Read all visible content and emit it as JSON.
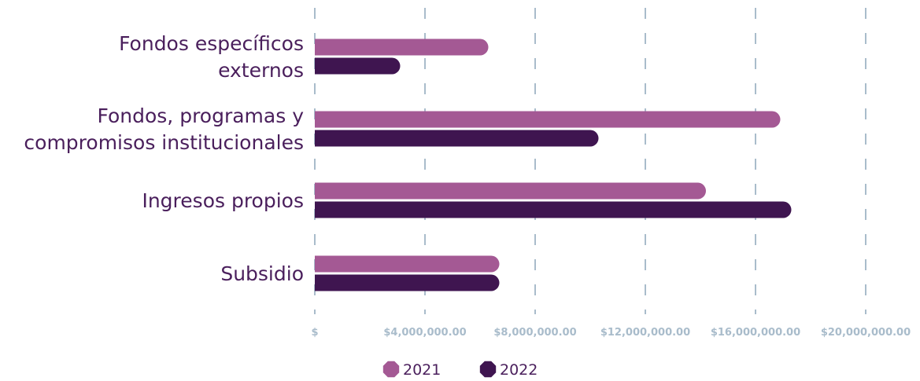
{
  "chart_data": {
    "type": "bar",
    "orientation": "horizontal",
    "title": "",
    "xlabel": "",
    "ylabel": "",
    "categories": [
      [
        "Fondos específicos",
        "externos"
      ],
      [
        "Fondos, programas y",
        "compromisos institucionales"
      ],
      [
        "Ingresos propios"
      ],
      [
        "Subsidio"
      ]
    ],
    "series": [
      {
        "name": "2021",
        "color": "#a45994",
        "values": [
          6300000,
          16900000,
          14200000,
          6700000
        ]
      },
      {
        "name": "2022",
        "color": "#3f1550",
        "values": [
          3100000,
          10300000,
          17300000,
          6700000
        ]
      }
    ],
    "xlim": [
      0,
      20000000
    ],
    "ticks": [
      {
        "value": 0,
        "label": "$"
      },
      {
        "value": 4000000,
        "label": "$4,000,000.00"
      },
      {
        "value": 8000000,
        "label": "$8,000,000.00"
      },
      {
        "value": 12000000,
        "label": "$12,000,000.00"
      },
      {
        "value": 16000000,
        "label": "$16,000,000.00"
      },
      {
        "value": 20000000,
        "label": "$20,000,000.00"
      }
    ],
    "grid": true,
    "grid_style": "dashed-vertical",
    "legend_position": "bottom-center"
  }
}
